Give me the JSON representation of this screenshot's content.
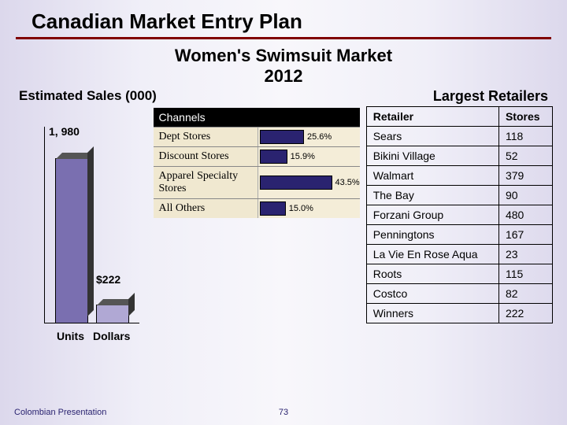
{
  "title": "Canadian Market Entry Plan",
  "subtitle_l1": "Women's Swimsuit Market",
  "subtitle_l2": "2012",
  "largest_label": "Largest Retailers",
  "est_label": "Estimated Sales (000)",
  "barchart": {
    "bars": [
      {
        "label": "1, 980",
        "axis": "Units"
      },
      {
        "label": "$222",
        "axis": "Dollars"
      }
    ]
  },
  "channels": {
    "header": "Channels",
    "rows": [
      {
        "name": "Dept Stores",
        "pct": 25.6,
        "pct_label": "25.6%"
      },
      {
        "name": "Discount Stores",
        "pct": 15.9,
        "pct_label": "15.9%"
      },
      {
        "name": "Apparel Specialty Stores",
        "pct": 43.5,
        "pct_label": "43.5%"
      },
      {
        "name": "All Others",
        "pct": 15.0,
        "pct_label": "15.0%"
      }
    ]
  },
  "retailers": {
    "col1": "Retailer",
    "col2": "Stores",
    "rows": [
      {
        "r": "Sears",
        "s": "118"
      },
      {
        "r": "Bikini Village",
        "s": "52"
      },
      {
        "r": "Walmart",
        "s": "379"
      },
      {
        "r": "The Bay",
        "s": "90"
      },
      {
        "r": "Forzani Group",
        "s": "480"
      },
      {
        "r": "Penningtons",
        "s": "167"
      },
      {
        "r": "La Vie En Rose Aqua",
        "s": "23"
      },
      {
        "r": "Roots",
        "s": "115"
      },
      {
        "r": "Costco",
        "s": "82"
      },
      {
        "r": "Winners",
        "s": "222"
      }
    ]
  },
  "footer_left": "Colombian Presentation",
  "page_num": "73"
}
